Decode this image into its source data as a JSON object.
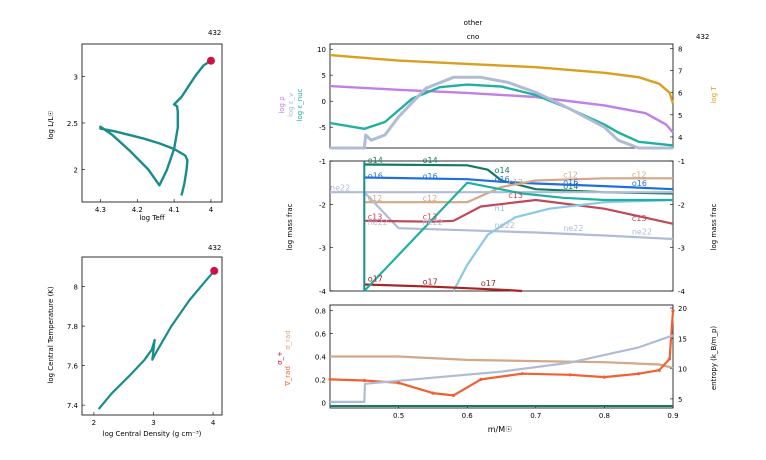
{
  "header": {
    "line1": "other",
    "line2": "cno",
    "model_top": "432",
    "model_hr": "432",
    "model_rho": "432"
  },
  "colors": {
    "teal": "#1a8c8c",
    "red_dot": "#cc1144",
    "orange": "#d9a020",
    "lilac": "#c080e8",
    "greyblue": "#b0bcd4",
    "tealline": "#20b0a0",
    "blue": "#1f6fe0",
    "green": "#147a60",
    "tan": "#d2a888",
    "rose": "#c04858",
    "lightblue": "#88c8e8",
    "darkred": "#aa2222",
    "orangered": "#f06030"
  },
  "chart_data": [
    {
      "id": "hr",
      "type": "line",
      "title": "432",
      "xlabel": "log Teff",
      "ylabel": "log L/L☉",
      "xlim": [
        4.35,
        3.97
      ],
      "ylim": [
        1.65,
        3.35
      ],
      "xticks": [
        4.3,
        4.2,
        4.1,
        4.0
      ],
      "xtick_labels": [
        "4.3",
        "4.2",
        "4.1",
        "4"
      ],
      "yticks": [
        2.0,
        2.5,
        3.0
      ],
      "ytick_labels": [
        "2",
        "2.5",
        "3"
      ],
      "series": [
        {
          "x": [
            4.08,
            4.072,
            4.066,
            4.064,
            4.07,
            4.1,
            4.14,
            4.18,
            4.22,
            4.26,
            4.3,
            4.3,
            4.27,
            4.22,
            4.17,
            4.14,
            4.12,
            4.1,
            4.09,
            4.09,
            4.092,
            4.1,
            4.08,
            4.06,
            4.04,
            4.02,
            4.0
          ],
          "y": [
            1.72,
            1.85,
            2.0,
            2.1,
            2.15,
            2.22,
            2.28,
            2.33,
            2.37,
            2.41,
            2.44,
            2.46,
            2.38,
            2.2,
            2.0,
            1.83,
            1.99,
            2.22,
            2.45,
            2.62,
            2.68,
            2.7,
            2.78,
            2.9,
            3.02,
            3.12,
            3.17
          ]
        }
      ],
      "current_point": {
        "x": 4.0,
        "y": 3.17
      }
    },
    {
      "id": "center",
      "type": "line",
      "title": "432",
      "xlabel": "log Central Density (g cm⁻³)",
      "ylabel": "log Central Temperature (K)",
      "xlim": [
        1.8,
        4.15
      ],
      "ylim": [
        7.35,
        8.15
      ],
      "xticks": [
        2,
        3,
        4
      ],
      "xtick_labels": [
        "2",
        "3",
        "4"
      ],
      "yticks": [
        7.4,
        7.6,
        7.8,
        8.0
      ],
      "ytick_labels": [
        "7.4",
        "7.6",
        "7.8",
        "8"
      ],
      "series": [
        {
          "x": [
            2.08,
            2.3,
            2.6,
            2.85,
            2.97,
            3.02,
            2.98,
            3.05,
            3.3,
            3.6,
            3.85,
            4.02
          ],
          "y": [
            7.38,
            7.46,
            7.55,
            7.63,
            7.68,
            7.73,
            7.63,
            7.67,
            7.8,
            7.93,
            8.02,
            8.08
          ]
        }
      ],
      "current_point": {
        "x": 4.02,
        "y": 8.08
      }
    },
    {
      "id": "structure",
      "type": "line",
      "left_labels": [
        "log ρ",
        "log ε_ν",
        "log ε_nuc"
      ],
      "right_label": "log T",
      "xlim": [
        0.4,
        0.9
      ],
      "ylim_left": [
        -9,
        11
      ],
      "ylim_right": [
        3.5,
        8.2
      ],
      "yticks_left": [
        -5,
        0,
        5,
        10
      ],
      "ytick_labels_left": [
        "-5",
        "0",
        "5",
        "10"
      ],
      "yticks_right": [
        4,
        5,
        6,
        7,
        8
      ],
      "ytick_labels_right": [
        "4",
        "5",
        "6",
        "7",
        "8"
      ],
      "series": [
        {
          "name": "log T",
          "axis": "right",
          "x": [
            0.4,
            0.5,
            0.6,
            0.7,
            0.8,
            0.85,
            0.88,
            0.895,
            0.9
          ],
          "y": [
            7.7,
            7.45,
            7.3,
            7.15,
            6.9,
            6.7,
            6.4,
            6.0,
            5.5
          ]
        },
        {
          "name": "log ρ",
          "axis": "left",
          "x": [
            0.4,
            0.5,
            0.6,
            0.7,
            0.8,
            0.86,
            0.89,
            0.9
          ],
          "y": [
            2.9,
            2.2,
            1.6,
            0.8,
            -0.8,
            -2.3,
            -4.5,
            -6.0
          ]
        },
        {
          "name": "log ε_nuc",
          "axis": "left",
          "x": [
            0.4,
            0.45,
            0.48,
            0.52,
            0.56,
            0.6,
            0.65,
            0.7,
            0.75,
            0.8,
            0.82,
            0.85,
            0.9
          ],
          "y": [
            -4.2,
            -5.3,
            -4.0,
            0.5,
            2.7,
            3.2,
            2.8,
            1.2,
            -1.5,
            -4.5,
            -6.0,
            -7.8,
            -8.5
          ]
        },
        {
          "name": "log ε_ν",
          "axis": "left",
          "x": [
            0.4,
            0.45,
            0.452,
            0.46,
            0.48,
            0.5,
            0.54,
            0.58,
            0.62,
            0.66,
            0.7,
            0.75,
            0.8,
            0.82,
            0.85,
            0.9
          ],
          "y": [
            -9,
            -9,
            -6.5,
            -7.5,
            -6.5,
            -3.0,
            2.5,
            4.6,
            4.6,
            3.6,
            1.7,
            -1.5,
            -5.0,
            -7.5,
            -9,
            -9
          ]
        }
      ]
    },
    {
      "id": "abundances",
      "type": "line",
      "ylabel": "log mass frac",
      "xlim": [
        0.4,
        0.9
      ],
      "ylim": [
        -4,
        -1
      ],
      "yticks": [
        -4,
        -3,
        -2,
        -1
      ],
      "ytick_labels": [
        "-4",
        "-3",
        "-2",
        "-1"
      ],
      "series": [
        {
          "name": "o14",
          "x": [
            0.45,
            0.6,
            0.63,
            0.65,
            0.7,
            0.8,
            0.9
          ],
          "y": [
            -1.08,
            -1.1,
            -1.2,
            -1.45,
            -1.65,
            -1.72,
            -1.75
          ]
        },
        {
          "name": "o16",
          "x": [
            0.45,
            0.6,
            0.65,
            0.7,
            0.8,
            0.9
          ],
          "y": [
            -1.38,
            -1.42,
            -1.48,
            -1.52,
            -1.58,
            -1.65
          ]
        },
        {
          "name": "c12",
          "x": [
            0.45,
            0.55,
            0.6,
            0.65,
            0.7,
            0.8,
            0.9
          ],
          "y": [
            -1.95,
            -1.95,
            -1.95,
            -1.6,
            -1.45,
            -1.4,
            -1.4
          ]
        },
        {
          "name": "ne22",
          "x": [
            0.4,
            0.45,
            0.5,
            0.6,
            0.7,
            0.8,
            0.9
          ],
          "y": [
            -1.72,
            -1.72,
            -2.55,
            -2.6,
            -2.65,
            -2.72,
            -2.8
          ]
        },
        {
          "name": "ne22b",
          "x": [
            0.45,
            0.9
          ],
          "y": [
            -1.72,
            -1.72
          ]
        },
        {
          "name": "c13",
          "x": [
            0.45,
            0.55,
            0.58,
            0.62,
            0.7,
            0.8,
            0.9
          ],
          "y": [
            -2.38,
            -2.4,
            -2.38,
            -2.05,
            -1.9,
            -2.1,
            -2.45
          ]
        },
        {
          "name": "h1",
          "x": [
            0.58,
            0.6,
            0.63,
            0.67,
            0.72,
            0.8,
            0.9
          ],
          "y": [
            -4,
            -3.4,
            -2.7,
            -2.3,
            -2.1,
            -1.95,
            -1.9
          ]
        },
        {
          "name": "o17",
          "x": [
            0.45,
            0.55,
            0.62,
            0.66,
            0.68
          ],
          "y": [
            -3.85,
            -3.9,
            -3.95,
            -3.98,
            -4
          ]
        },
        {
          "name": "green_mix",
          "x": [
            0.45,
            0.6,
            0.68,
            0.74,
            0.8,
            0.9
          ],
          "y": [
            -4,
            -1.5,
            -1.75,
            -1.85,
            -1.9,
            -1.9
          ]
        }
      ],
      "labels": [
        {
          "text": "o14",
          "x": 0.455,
          "y": -1.05,
          "color": "#147a60"
        },
        {
          "text": "o14",
          "x": 0.535,
          "y": -1.05,
          "color": "#147a60"
        },
        {
          "text": "o14",
          "x": 0.64,
          "y": -1.28,
          "color": "#147a60"
        },
        {
          "text": "o14",
          "x": 0.74,
          "y": -1.65,
          "color": "#147a60"
        },
        {
          "text": "o16",
          "x": 0.455,
          "y": -1.4,
          "color": "#1f6fe0"
        },
        {
          "text": "o16",
          "x": 0.535,
          "y": -1.42,
          "color": "#1f6fe0"
        },
        {
          "text": "o16",
          "x": 0.64,
          "y": -1.48,
          "color": "#1f6fe0"
        },
        {
          "text": "o16",
          "x": 0.74,
          "y": -1.55,
          "color": "#1f6fe0"
        },
        {
          "text": "o16",
          "x": 0.84,
          "y": -1.58,
          "color": "#1f6fe0"
        },
        {
          "text": "c12",
          "x": 0.455,
          "y": -1.92,
          "color": "#d2a888"
        },
        {
          "text": "c12",
          "x": 0.535,
          "y": -1.92,
          "color": "#d2a888"
        },
        {
          "text": "c12",
          "x": 0.66,
          "y": -1.55,
          "color": "#d2a888"
        },
        {
          "text": "c12",
          "x": 0.74,
          "y": -1.38,
          "color": "#d2a888"
        },
        {
          "text": "c12",
          "x": 0.84,
          "y": -1.38,
          "color": "#d2a888"
        },
        {
          "text": "ne22",
          "x": 0.4,
          "y": -1.68,
          "color": "#b0bcd4"
        },
        {
          "text": "ne22",
          "x": 0.455,
          "y": -2.48,
          "color": "#b0bcd4"
        },
        {
          "text": "ne22",
          "x": 0.535,
          "y": -2.48,
          "color": "#b0bcd4"
        },
        {
          "text": "ne22",
          "x": 0.64,
          "y": -2.55,
          "color": "#b0bcd4"
        },
        {
          "text": "ne22",
          "x": 0.74,
          "y": -2.62,
          "color": "#b0bcd4"
        },
        {
          "text": "ne22",
          "x": 0.84,
          "y": -2.7,
          "color": "#b0bcd4"
        },
        {
          "text": "c13",
          "x": 0.455,
          "y": -2.35,
          "color": "#c04858"
        },
        {
          "text": "c13",
          "x": 0.535,
          "y": -2.35,
          "color": "#c04858"
        },
        {
          "text": "c13",
          "x": 0.66,
          "y": -1.85,
          "color": "#c04858"
        },
        {
          "text": "c13",
          "x": 0.84,
          "y": -2.38,
          "color": "#c04858"
        },
        {
          "text": "h1",
          "x": 0.64,
          "y": -2.15,
          "color": "#88c8e8"
        },
        {
          "text": "o17",
          "x": 0.455,
          "y": -3.78,
          "color": "#aa2222"
        },
        {
          "text": "o17",
          "x": 0.535,
          "y": -3.85,
          "color": "#aa2222"
        },
        {
          "text": "o17",
          "x": 0.62,
          "y": -3.88,
          "color": "#aa2222"
        }
      ]
    },
    {
      "id": "mixing",
      "type": "line",
      "xlabel": "m/M☉",
      "left_labels": [
        "σ_rad",
        "σ_+",
        "∇_rad"
      ],
      "right_label": "entropy (k_B/m_p)",
      "xlim": [
        0.4,
        0.9
      ],
      "ylim_left": [
        -0.05,
        0.85
      ],
      "ylim_right": [
        3.5,
        20.5
      ],
      "xticks": [
        0.5,
        0.6,
        0.7,
        0.8,
        0.9
      ],
      "xtick_labels": [
        "0.5",
        "0.6",
        "0.7",
        "0.8",
        "0.9"
      ],
      "yticks_left": [
        0,
        0.2,
        0.4,
        0.6,
        0.8
      ],
      "ytick_labels_left": [
        "0",
        "0.2",
        "0.4",
        "0.6",
        "0.8"
      ],
      "yticks_right": [
        5,
        10,
        15,
        20
      ],
      "ytick_labels_right": [
        "5",
        "10",
        "15",
        "20"
      ],
      "series": [
        {
          "name": "grad_ad",
          "axis": "left",
          "x": [
            0.4,
            0.5,
            0.6,
            0.7,
            0.8,
            0.88,
            0.9
          ],
          "y": [
            0.4,
            0.4,
            0.37,
            0.36,
            0.35,
            0.33,
            0.3
          ]
        },
        {
          "name": "grad_rad",
          "axis": "left",
          "x": [
            0.4,
            0.45,
            0.5,
            0.55,
            0.58,
            0.62,
            0.68,
            0.75,
            0.8,
            0.85,
            0.88,
            0.895,
            0.9
          ],
          "y": [
            0.2,
            0.19,
            0.17,
            0.08,
            0.06,
            0.2,
            0.25,
            0.24,
            0.22,
            0.25,
            0.28,
            0.38,
            0.8
          ]
        },
        {
          "name": "entropy",
          "axis": "right",
          "x": [
            0.4,
            0.45,
            0.451,
            0.55,
            0.65,
            0.75,
            0.85,
            0.9
          ],
          "y": [
            4.5,
            4.5,
            7.5,
            8.5,
            9.5,
            11,
            13.5,
            15.5
          ]
        }
      ]
    }
  ]
}
